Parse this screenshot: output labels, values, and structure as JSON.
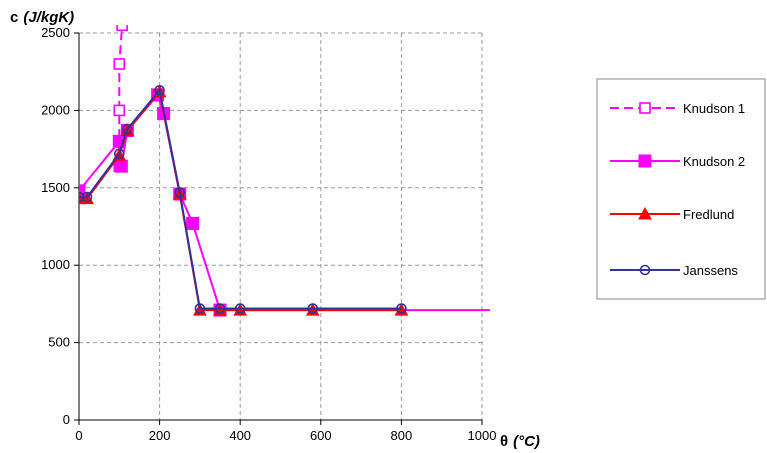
{
  "chart_data": {
    "type": "line",
    "title": "",
    "xlabel": {
      "symbol": "θ",
      "unit": "(°C)"
    },
    "ylabel": {
      "symbol": "c",
      "unit": "(J/kgK)"
    },
    "xlim": [
      0,
      1000
    ],
    "ylim": [
      0,
      2500
    ],
    "xticks": [
      0,
      200,
      400,
      600,
      800,
      1000
    ],
    "yticks": [
      0,
      500,
      1000,
      1500,
      2000,
      2500
    ],
    "grid": "dashed",
    "legend_position": "right",
    "series": [
      {
        "name": "Knudson 1",
        "color": "#ff00ff",
        "marker": "square-open",
        "line": "dashed",
        "points": [
          [
            100,
            1640
          ],
          [
            100,
            1800
          ],
          [
            100,
            2000
          ],
          [
            100,
            2300
          ],
          [
            107,
            2550
          ]
        ]
      },
      {
        "name": "Knudson 2",
        "color": "#ff00ff",
        "marker": "square-filled",
        "line": "solid",
        "points": [
          [
            0,
            1480
          ],
          [
            100,
            1800
          ],
          [
            105,
            1640
          ],
          [
            120,
            1870
          ],
          [
            195,
            2100
          ],
          [
            210,
            1980
          ],
          [
            250,
            1460
          ],
          [
            282,
            1270
          ],
          [
            350,
            710
          ],
          [
            1020,
            710
          ]
        ]
      },
      {
        "name": "Fredlund",
        "color": "#ff0000",
        "marker": "triangle-filled",
        "line": "solid",
        "points": [
          [
            0,
            1430
          ],
          [
            20,
            1430
          ],
          [
            100,
            1710
          ],
          [
            120,
            1870
          ],
          [
            200,
            2120
          ],
          [
            250,
            1460
          ],
          [
            300,
            710
          ],
          [
            350,
            710
          ],
          [
            400,
            710
          ],
          [
            580,
            710
          ],
          [
            800,
            710
          ]
        ]
      },
      {
        "name": "Janssens",
        "color": "#333399",
        "marker": "circle-open",
        "line": "solid",
        "points": [
          [
            0,
            1440
          ],
          [
            20,
            1440
          ],
          [
            100,
            1720
          ],
          [
            120,
            1880
          ],
          [
            200,
            2130
          ],
          [
            250,
            1470
          ],
          [
            300,
            720
          ],
          [
            350,
            720
          ],
          [
            400,
            720
          ],
          [
            580,
            720
          ],
          [
            800,
            720
          ]
        ]
      }
    ]
  }
}
